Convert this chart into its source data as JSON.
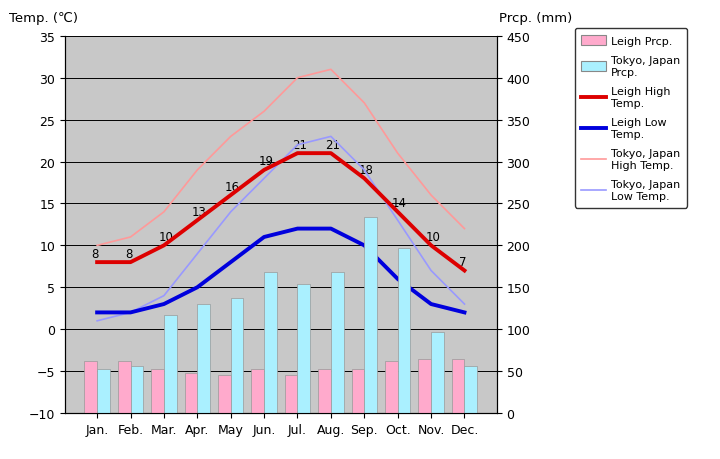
{
  "months": [
    "Jan.",
    "Feb.",
    "Mar.",
    "Apr.",
    "May",
    "Jun.",
    "Jul.",
    "Aug.",
    "Sep.",
    "Oct.",
    "Nov.",
    "Dec."
  ],
  "leigh_high_temp": [
    8,
    8,
    10,
    13,
    16,
    19,
    21,
    21,
    18,
    14,
    10,
    7
  ],
  "leigh_low_temp": [
    2,
    2,
    3,
    5,
    8,
    11,
    12,
    12,
    10,
    6,
    3,
    2
  ],
  "tokyo_high_temp": [
    10,
    11,
    14,
    19,
    23,
    26,
    30,
    31,
    27,
    21,
    16,
    12
  ],
  "tokyo_low_temp": [
    1,
    2,
    4,
    9,
    14,
    18,
    22,
    23,
    19,
    13,
    7,
    3
  ],
  "leigh_prcp_mm": [
    62,
    62,
    52,
    48,
    45,
    52,
    45,
    52,
    52,
    62,
    65,
    65
  ],
  "tokyo_prcp_mm": [
    52,
    56,
    117,
    130,
    137,
    168,
    154,
    168,
    234,
    197,
    97,
    56
  ],
  "temp_ylim": [
    -10,
    35
  ],
  "prcp_ylim": [
    0,
    450
  ],
  "temp_yticks": [
    -10,
    -5,
    0,
    5,
    10,
    15,
    20,
    25,
    30,
    35
  ],
  "prcp_yticks": [
    0,
    50,
    100,
    150,
    200,
    250,
    300,
    350,
    400,
    450
  ],
  "leigh_high_color": "#dd0000",
  "leigh_low_color": "#0000dd",
  "tokyo_high_color": "#ff9999",
  "tokyo_low_color": "#9999ff",
  "leigh_prcp_color": "#ffaacc",
  "tokyo_prcp_color": "#aaf0ff",
  "bg_color": "#c8c8c8",
  "plot_bg_color": "#c8c8c8",
  "title_left": "Temp. (℃)",
  "title_right": "Prcp. (mm)",
  "fig_width": 7.2,
  "fig_height": 4.6,
  "legend_entries": [
    {
      "label": "Leigh Prcp.",
      "type": "patch"
    },
    {
      "label": "Tokyo, Japan\nPrcp.",
      "type": "patch"
    },
    {
      "label": "Leigh High\nTemp.",
      "type": "line_thick_red"
    },
    {
      "label": "Leigh Low\nTemp.",
      "type": "line_thick_blue"
    },
    {
      "label": "Tokyo, Japan\nHigh Temp.",
      "type": "line_thin_red"
    },
    {
      "label": "Tokyo, Japan\nLow Temp.",
      "type": "line_thin_blue"
    }
  ]
}
